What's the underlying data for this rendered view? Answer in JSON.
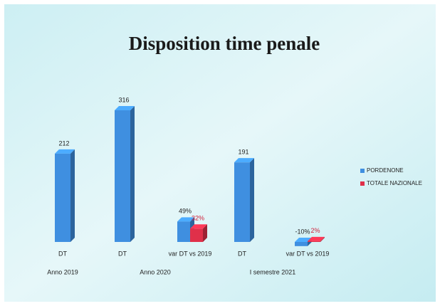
{
  "chart_data": {
    "type": "bar3d",
    "title": "Disposition time penale",
    "categories": [
      "DT",
      "DT",
      "var DT vs 2019",
      "DT",
      "var DT vs 2019"
    ],
    "group_labels": [
      "Anno 2019",
      "Anno 2020",
      "I semestre 2021"
    ],
    "series": [
      {
        "name": "PORDENONE",
        "color": "#3f8fe0",
        "values": [
          212,
          316,
          49,
          191,
          -10
        ],
        "value_labels": [
          "212",
          "316",
          "49%",
          "191",
          "-10%"
        ]
      },
      {
        "name": "TOTALE NAZIONALE",
        "color": "#e0304a",
        "values": [
          null,
          null,
          32,
          null,
          2
        ],
        "value_labels": [
          null,
          null,
          "32%",
          null,
          "2%"
        ]
      }
    ],
    "legend": "right"
  }
}
